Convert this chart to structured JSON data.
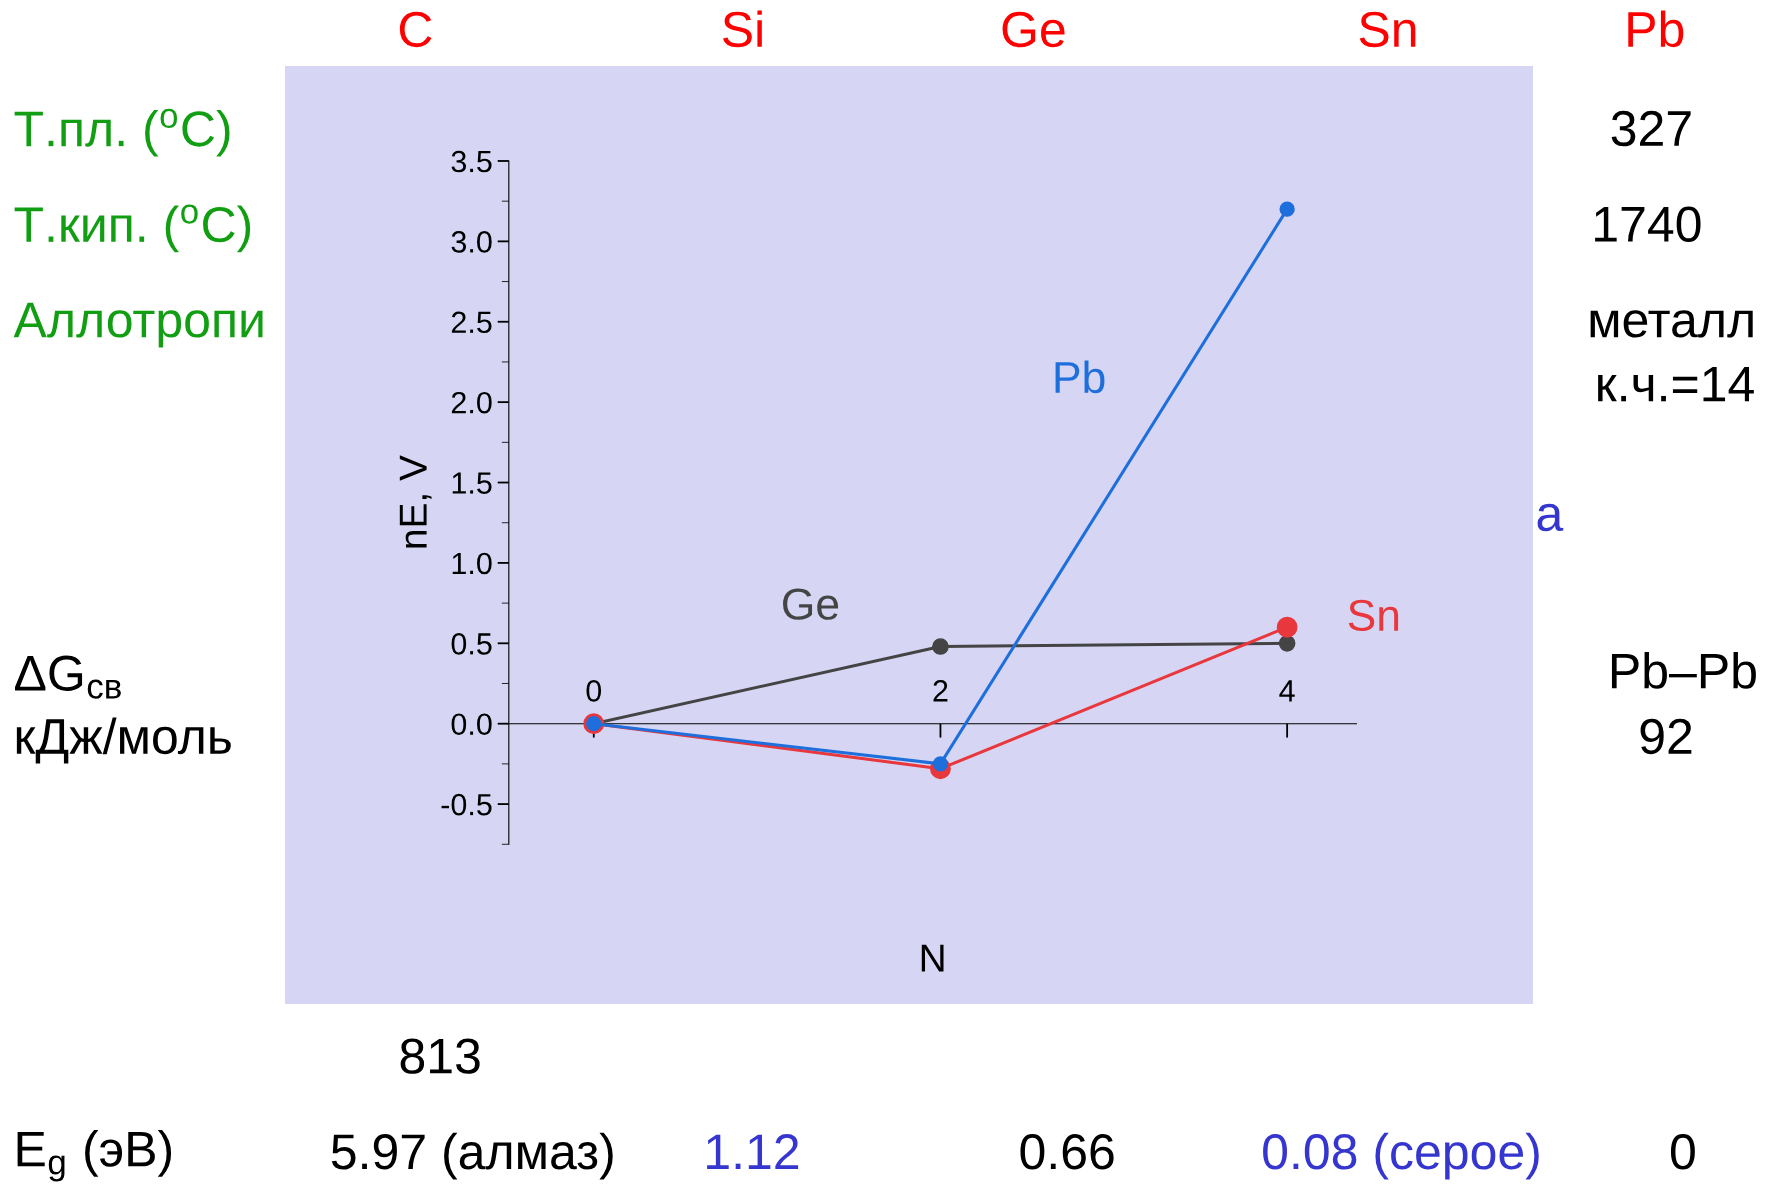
{
  "chart_data": {
    "type": "line",
    "x": [
      0,
      2,
      4
    ],
    "xlim": [
      -0.49,
      4.4
    ],
    "xticks": [
      0,
      2,
      4
    ],
    "ylim": [
      -0.75,
      3.5
    ],
    "yticks": [
      -0.5,
      {
        "value": 0,
        "label": "0.0"
      },
      0.5,
      {
        "value": 1,
        "label": "1.0"
      },
      1.5,
      {
        "value": 2,
        "label": "2.0"
      },
      2.5,
      {
        "value": 3,
        "label": "3.0"
      },
      3.5
    ],
    "xlabel": "N",
    "ylabel": "nE, V",
    "marker": "circle",
    "line_style": "solid",
    "grid": false,
    "series": [
      {
        "name": "Ge",
        "color": "#444444",
        "values": [
          0,
          0.48,
          0.5
        ]
      },
      {
        "name": "Sn",
        "color": "#e8383d",
        "values": [
          0,
          -0.28,
          0.6
        ]
      },
      {
        "name": "Pb",
        "color": "#1e6fdc",
        "values": [
          0,
          -0.25,
          3.2
        ]
      }
    ],
    "annotations": [
      "C",
      "Si",
      "Ge",
      "Sn",
      "Pb",
      "Т.пл. ($^{o}$C)",
      "Т.кип. ($^{o}$C)",
      "Аллотропи",
      "327",
      "1740",
      "металл",
      "к.ч.=14",
      "а",
      "ΔG$_{св}$",
      "кДж/моль",
      "Pb–Pb",
      "92",
      "813",
      "E$_{g}$ (эВ)",
      "5.97 (алмаз)",
      "1.12",
      "0.66",
      "0.08 (серое)",
      "0"
    ]
  }
}
